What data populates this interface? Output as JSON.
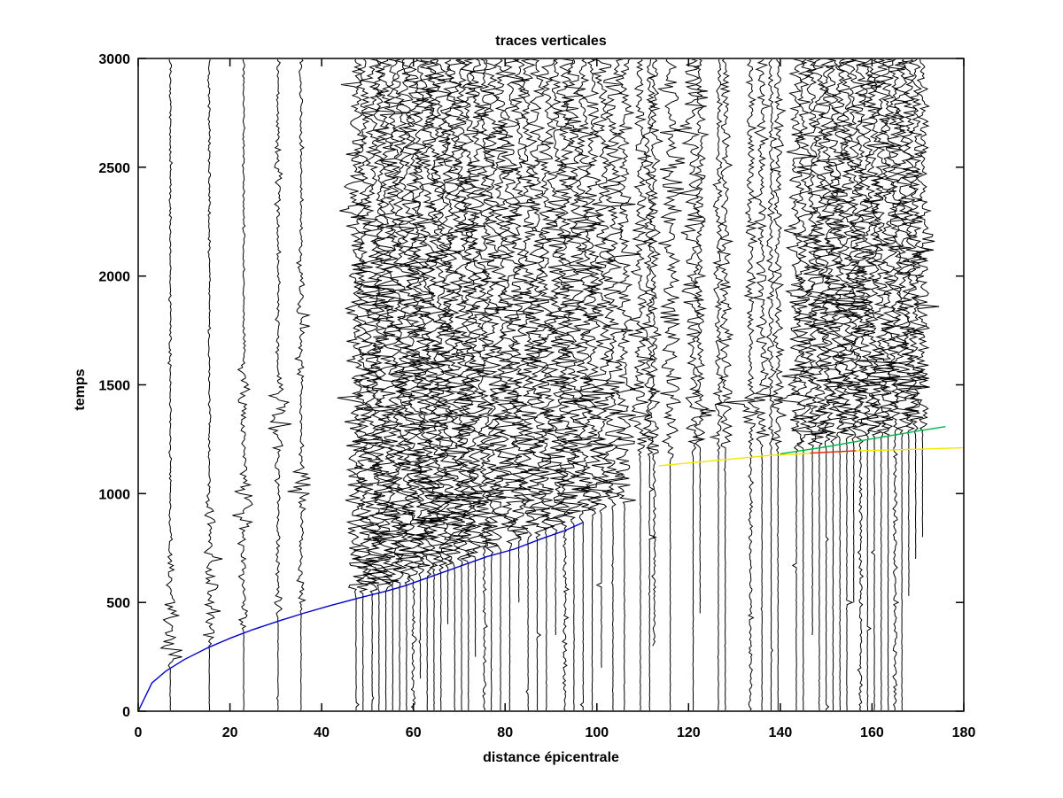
{
  "chart_data": {
    "type": "line",
    "variant": "seismic-record-section",
    "title": "traces verticales",
    "xlabel": "distance épicentrale",
    "ylabel": "temps",
    "xlim": [
      0,
      180
    ],
    "ylim": [
      0,
      3000
    ],
    "xticks": [
      0,
      20,
      40,
      60,
      80,
      100,
      120,
      140,
      160,
      180
    ],
    "yticks": [
      0,
      500,
      1000,
      1500,
      2000,
      2500,
      3000
    ],
    "grid": false,
    "legend": "none",
    "colors": {
      "trace": "#000000",
      "axis": "#000000",
      "curve_blue": "#0000c8",
      "curve_yellow": "#f0e800",
      "curve_green": "#00b84c",
      "curve_red": "#e02020",
      "background": "#ffffff"
    },
    "curves": [
      {
        "name": "p-arrival-blue",
        "color": "#0000c8",
        "points": [
          [
            0,
            0
          ],
          [
            3,
            130
          ],
          [
            6,
            184
          ],
          [
            10,
            237
          ],
          [
            15,
            290
          ],
          [
            20,
            335
          ],
          [
            25,
            375
          ],
          [
            31,
            417
          ],
          [
            36,
            450
          ],
          [
            42,
            486
          ],
          [
            48,
            520
          ],
          [
            54,
            551
          ],
          [
            58,
            575
          ],
          [
            64,
            620
          ],
          [
            70,
            665
          ],
          [
            76,
            710
          ],
          [
            82,
            745
          ],
          [
            88,
            793
          ],
          [
            93,
            830
          ],
          [
            97,
            867
          ]
        ]
      },
      {
        "name": "phase-yellow",
        "color": "#f0e800",
        "points": [
          [
            113.5,
            1128
          ],
          [
            138,
            1176
          ],
          [
            156,
            1196
          ],
          [
            170,
            1204
          ],
          [
            180,
            1211
          ]
        ]
      },
      {
        "name": "phase-green",
        "color": "#00b84c",
        "points": [
          [
            140,
            1183
          ],
          [
            150,
            1215
          ],
          [
            160,
            1252
          ],
          [
            170,
            1288
          ],
          [
            176,
            1308
          ]
        ]
      },
      {
        "name": "phase-red",
        "color": "#e02020",
        "points": [
          [
            146.5,
            1186
          ],
          [
            156.5,
            1197
          ]
        ]
      }
    ],
    "trace_fields": "d=epicentral distance, t0=first-arrival time, a=peak amplitude(px), tau=coda decay, fl=coda floor amplitude, st=record start time, pn=pre-arrival noise amplitude, b=[center,time-width,amplitude] extra bursts",
    "traces": [
      {
        "d": 7,
        "t0": 198,
        "a": 24,
        "tau": 280,
        "fl": 1.4,
        "st": 0,
        "b": []
      },
      {
        "d": 15.5,
        "t0": 295,
        "a": 15,
        "tau": 320,
        "fl": 1.4,
        "st": 0,
        "b": [
          [
            620,
            110,
            13
          ],
          [
            900,
            80,
            8
          ]
        ]
      },
      {
        "d": 23,
        "t0": 360,
        "a": 10,
        "tau": 300,
        "fl": 1.5,
        "st": 0,
        "b": [
          [
            960,
            140,
            17
          ],
          [
            1420,
            160,
            8
          ]
        ]
      },
      {
        "d": 30.5,
        "t0": 414,
        "a": 8,
        "tau": 300,
        "fl": 1.8,
        "st": 0,
        "b": [
          [
            1330,
            190,
            15
          ],
          [
            2500,
            120,
            4
          ]
        ]
      },
      {
        "d": 35.5,
        "t0": 447,
        "a": 9,
        "tau": 300,
        "fl": 2.0,
        "st": 0,
        "b": [
          [
            1020,
            90,
            12
          ],
          [
            1800,
            250,
            4
          ]
        ]
      },
      {
        "d": 47.5,
        "t0": 517,
        "a": 18,
        "tau": 4000,
        "fl": 7,
        "st": 0,
        "b": []
      },
      {
        "d": 49,
        "t0": 525,
        "a": 15,
        "tau": 4000,
        "fl": 7,
        "st": 0,
        "b": []
      },
      {
        "d": 51,
        "t0": 536,
        "a": 20,
        "tau": 4000,
        "fl": 7,
        "st": 0,
        "b": []
      },
      {
        "d": 52.5,
        "t0": 543,
        "a": 16,
        "tau": 4000,
        "fl": 7,
        "st": 0,
        "b": []
      },
      {
        "d": 54,
        "t0": 551,
        "a": 22,
        "tau": 4000,
        "fl": 7,
        "st": 0,
        "b": []
      },
      {
        "d": 55.5,
        "t0": 559,
        "a": 17,
        "tau": 4000,
        "fl": 7,
        "st": 0,
        "b": [
          [
            1900,
            120,
            8
          ]
        ]
      },
      {
        "d": 57,
        "t0": 566,
        "a": 14,
        "tau": 4000,
        "fl": 7,
        "st": 0,
        "b": [
          [
            2050,
            100,
            8
          ]
        ]
      },
      {
        "d": 58.5,
        "t0": 579,
        "a": 19,
        "tau": 4000,
        "fl": 7,
        "st": 0,
        "b": []
      },
      {
        "d": 60,
        "t0": 590,
        "a": 21,
        "tau": 4000,
        "fl": 7,
        "st": 0,
        "pn": 2.5,
        "b": []
      },
      {
        "d": 61.5,
        "t0": 601,
        "a": 16,
        "tau": 4000,
        "fl": 7,
        "st": 150,
        "b": []
      },
      {
        "d": 63,
        "t0": 612,
        "a": 18,
        "tau": 4000,
        "fl": 7,
        "st": 0,
        "b": []
      },
      {
        "d": 64.5,
        "t0": 624,
        "a": 20,
        "tau": 4000,
        "fl": 7,
        "st": 0,
        "b": []
      },
      {
        "d": 66,
        "t0": 635,
        "a": 15,
        "tau": 4000,
        "fl": 7,
        "st": 0,
        "b": []
      },
      {
        "d": 67.5,
        "t0": 646,
        "a": 17,
        "tau": 4000,
        "fl": 7,
        "st": 400,
        "b": []
      },
      {
        "d": 69,
        "t0": 657,
        "a": 22,
        "tau": 4000,
        "fl": 7,
        "st": 0,
        "b": []
      },
      {
        "d": 70.5,
        "t0": 669,
        "a": 18,
        "tau": 4000,
        "fl": 7,
        "st": 0,
        "b": []
      },
      {
        "d": 72,
        "t0": 680,
        "a": 16,
        "tau": 4000,
        "fl": 7,
        "st": 0,
        "b": []
      },
      {
        "d": 73.5,
        "t0": 691,
        "a": 20,
        "tau": 4000,
        "fl": 7,
        "st": 250,
        "b": []
      },
      {
        "d": 75.5,
        "t0": 706,
        "a": 14,
        "tau": 4000,
        "fl": 7,
        "st": 0,
        "pn": 2,
        "b": []
      },
      {
        "d": 77,
        "t0": 717,
        "a": 19,
        "tau": 4000,
        "fl": 7,
        "st": 0,
        "b": []
      },
      {
        "d": 79,
        "t0": 732,
        "a": 17,
        "tau": 4000,
        "fl": 7,
        "st": 0,
        "b": []
      },
      {
        "d": 81,
        "t0": 747,
        "a": 21,
        "tau": 4000,
        "fl": 7,
        "st": 0,
        "b": []
      },
      {
        "d": 83,
        "t0": 762,
        "a": 16,
        "tau": 4000,
        "fl": 7,
        "st": 500,
        "b": []
      },
      {
        "d": 85,
        "t0": 777,
        "a": 18,
        "tau": 4000,
        "fl": 7,
        "st": 0,
        "b": [
          [
            2350,
            120,
            8
          ]
        ]
      },
      {
        "d": 87,
        "t0": 792,
        "a": 20,
        "tau": 4000,
        "fl": 7,
        "st": 0,
        "b": [
          [
            2420,
            100,
            8
          ]
        ]
      },
      {
        "d": 89,
        "t0": 807,
        "a": 15,
        "tau": 4000,
        "fl": 7,
        "st": 0,
        "b": []
      },
      {
        "d": 91,
        "t0": 822,
        "a": 19,
        "tau": 4000,
        "fl": 7,
        "st": 350,
        "b": []
      },
      {
        "d": 93,
        "t0": 837,
        "a": 17,
        "tau": 4000,
        "fl": 7,
        "st": 0,
        "pn": 2.5,
        "b": []
      },
      {
        "d": 95,
        "t0": 852,
        "a": 22,
        "tau": 4000,
        "fl": 7,
        "st": 0,
        "b": []
      },
      {
        "d": 97,
        "t0": 867,
        "a": 18,
        "tau": 4000,
        "fl": 7,
        "st": 0,
        "b": []
      },
      {
        "d": 99,
        "t0": 883,
        "a": 16,
        "tau": 4000,
        "fl": 7,
        "st": 0,
        "b": []
      },
      {
        "d": 101,
        "t0": 899,
        "a": 20,
        "tau": 4000,
        "fl": 7,
        "st": 200,
        "b": []
      },
      {
        "d": 103.5,
        "t0": 919,
        "a": 18,
        "tau": 4000,
        "fl": 7,
        "st": 0,
        "b": []
      },
      {
        "d": 106,
        "t0": 939,
        "a": 15,
        "tau": 4000,
        "fl": 7,
        "st": 0,
        "b": []
      },
      {
        "d": 109.5,
        "t0": 1140,
        "a": 11,
        "tau": 4000,
        "fl": 5,
        "st": 0,
        "b": []
      },
      {
        "d": 111.5,
        "t0": 1143,
        "a": 9,
        "tau": 4000,
        "fl": 5,
        "st": 0,
        "b": []
      },
      {
        "d": 112.5,
        "t0": 1145,
        "a": 10,
        "tau": 4000,
        "fl": 5,
        "st": 300,
        "pn": 2,
        "b": []
      },
      {
        "d": 116,
        "t0": 1152,
        "a": 14,
        "tau": 4000,
        "fl": 5,
        "st": 0,
        "b": [
          [
            1790,
            60,
            8
          ],
          [
            2700,
            250,
            6
          ]
        ]
      },
      {
        "d": 121,
        "t0": 1163,
        "a": 13,
        "tau": 4000,
        "fl": 5,
        "st": 0,
        "b": [
          [
            1880,
            70,
            15
          ],
          [
            2240,
            60,
            11
          ],
          [
            2750,
            200,
            6
          ]
        ]
      },
      {
        "d": 122.5,
        "t0": 1166,
        "a": 10,
        "tau": 4000,
        "fl": 5,
        "st": 450,
        "b": []
      },
      {
        "d": 126.5,
        "t0": 1172,
        "a": 6,
        "tau": 4000,
        "fl": 4,
        "st": 0,
        "b": []
      },
      {
        "d": 128,
        "t0": 1175,
        "a": 9,
        "tau": 4000,
        "fl": 5,
        "st": 0,
        "b": []
      },
      {
        "d": 133.5,
        "t0": 1176,
        "a": 7,
        "tau": 4000,
        "fl": 4,
        "st": 0,
        "pn": 2.5,
        "b": [
          [
            1395,
            45,
            16
          ]
        ]
      },
      {
        "d": 136,
        "t0": 1178,
        "a": 10,
        "tau": 4000,
        "fl": 5,
        "st": 0,
        "b": [
          [
            1420,
            40,
            12
          ]
        ]
      },
      {
        "d": 138,
        "t0": 1180,
        "a": 6,
        "tau": 4000,
        "fl": 4,
        "st": 0,
        "b": []
      },
      {
        "d": 139.5,
        "t0": 1182,
        "a": 8,
        "tau": 4000,
        "fl": 5,
        "st": 0,
        "b": []
      },
      {
        "d": 143.5,
        "t0": 1187,
        "a": 14,
        "tau": 4000,
        "fl": 7,
        "st": 0,
        "b": []
      },
      {
        "d": 145,
        "t0": 1191,
        "a": 16,
        "tau": 4000,
        "fl": 7,
        "st": 0,
        "b": []
      },
      {
        "d": 147,
        "t0": 1198,
        "a": 12,
        "tau": 4000,
        "fl": 7,
        "st": 350,
        "b": []
      },
      {
        "d": 148.5,
        "t0": 1203,
        "a": 15,
        "tau": 4000,
        "fl": 7,
        "st": 0,
        "b": [
          [
            1860,
            70,
            12
          ]
        ]
      },
      {
        "d": 150,
        "t0": 1207,
        "a": 13,
        "tau": 4000,
        "fl": 7,
        "st": 0,
        "b": []
      },
      {
        "d": 151.5,
        "t0": 1212,
        "a": 17,
        "tau": 4000,
        "fl": 7,
        "st": 0,
        "b": [
          [
            1880,
            70,
            12
          ]
        ]
      },
      {
        "d": 153,
        "t0": 1217,
        "a": 14,
        "tau": 4000,
        "fl": 7,
        "st": 0,
        "b": [
          [
            2280,
            80,
            10
          ]
        ]
      },
      {
        "d": 154.5,
        "t0": 1222,
        "a": 16,
        "tau": 4000,
        "fl": 7,
        "st": 0,
        "b": [
          [
            1850,
            60,
            12
          ]
        ]
      },
      {
        "d": 156,
        "t0": 1227,
        "a": 13,
        "tau": 4000,
        "fl": 7,
        "st": 500,
        "b": []
      },
      {
        "d": 157.5,
        "t0": 1231,
        "a": 15,
        "tau": 4000,
        "fl": 7,
        "st": 0,
        "pn": 2,
        "b": [
          [
            1900,
            60,
            10
          ]
        ]
      },
      {
        "d": 159,
        "t0": 1236,
        "a": 16,
        "tau": 4000,
        "fl": 7,
        "st": 0,
        "b": [
          [
            1530,
            50,
            14
          ]
        ]
      },
      {
        "d": 160.5,
        "t0": 1241,
        "a": 14,
        "tau": 4000,
        "fl": 7,
        "st": 0,
        "b": [
          [
            1540,
            50,
            16
          ]
        ]
      },
      {
        "d": 162,
        "t0": 1246,
        "a": 17,
        "tau": 4000,
        "fl": 7,
        "st": 0,
        "b": [
          [
            1545,
            45,
            18
          ]
        ]
      },
      {
        "d": 163.5,
        "t0": 1251,
        "a": 15,
        "tau": 4000,
        "fl": 7,
        "st": 0,
        "b": [
          [
            1550,
            50,
            16
          ],
          [
            2290,
            70,
            10
          ]
        ]
      },
      {
        "d": 165,
        "t0": 1255,
        "a": 13,
        "tau": 4000,
        "fl": 7,
        "st": 0,
        "pn": 2.5,
        "b": [
          [
            2600,
            120,
            6
          ]
        ]
      },
      {
        "d": 166.5,
        "t0": 1260,
        "a": 16,
        "tau": 4000,
        "fl": 7,
        "st": 0,
        "b": [
          [
            1540,
            45,
            30
          ]
        ]
      },
      {
        "d": 168,
        "t0": 1265,
        "a": 15,
        "tau": 4000,
        "fl": 7,
        "st": 530,
        "b": [
          [
            1545,
            50,
            20
          ]
        ]
      },
      {
        "d": 169.5,
        "t0": 1270,
        "a": 14,
        "tau": 4000,
        "fl": 7,
        "st": 700,
        "b": []
      },
      {
        "d": 171,
        "t0": 1275,
        "a": 13,
        "tau": 4000,
        "fl": 7,
        "st": 800,
        "b": []
      }
    ]
  }
}
